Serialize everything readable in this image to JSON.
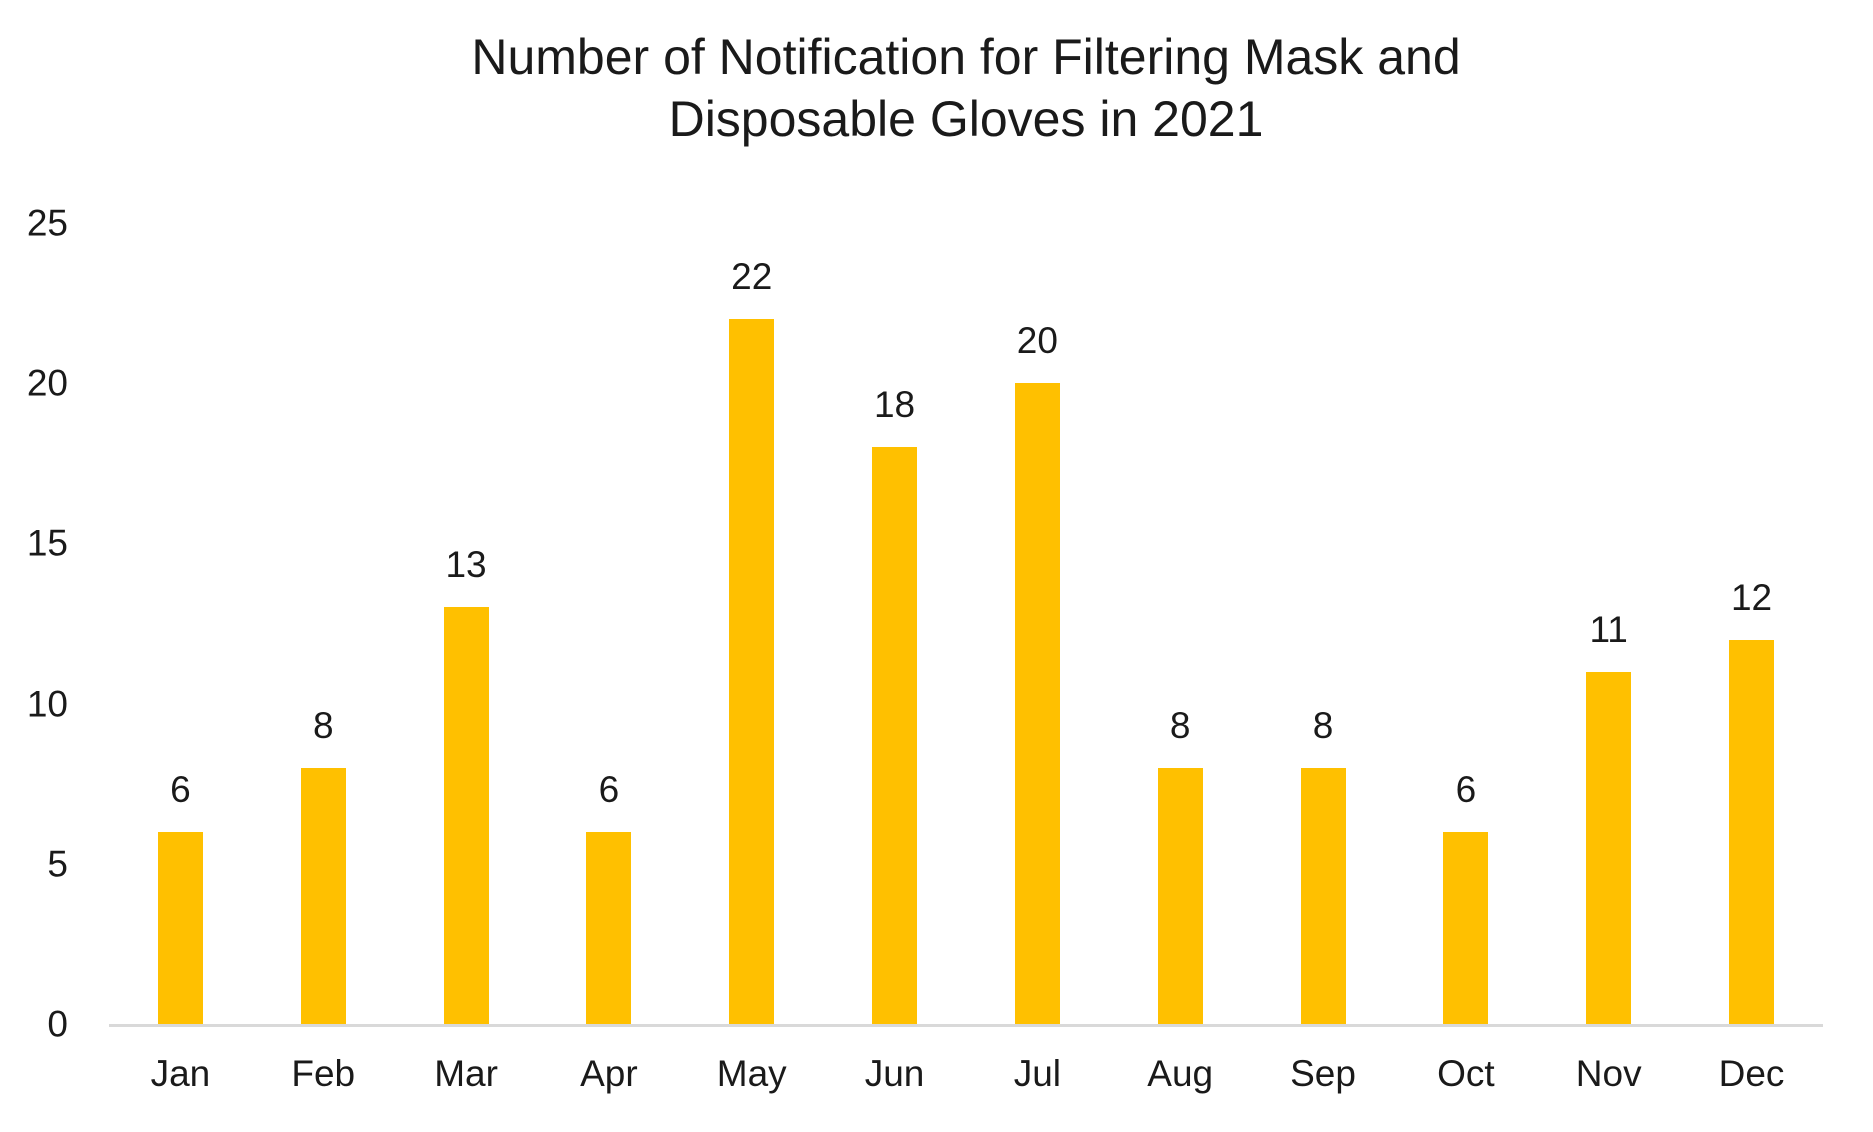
{
  "chart_data": {
    "type": "bar",
    "title": "Number of Notification for Filtering Mask and Disposable Gloves in 2021",
    "title_lines": [
      "Number of Notification for Filtering Mask and",
      "Disposable Gloves in 2021"
    ],
    "categories": [
      "Jan",
      "Feb",
      "Mar",
      "Apr",
      "May",
      "Jun",
      "Jul",
      "Aug",
      "Sep",
      "Oct",
      "Nov",
      "Dec"
    ],
    "values": [
      6,
      8,
      13,
      6,
      22,
      18,
      20,
      8,
      8,
      6,
      11,
      12
    ],
    "ylim": [
      0,
      25
    ],
    "y_ticks": [
      0,
      5,
      10,
      15,
      20,
      25
    ],
    "data_labels": true,
    "grid": false,
    "legend": false,
    "bar_color": "#FFC000",
    "axis_line_color": "#D9D9D9",
    "text_color": "#1A1A1A"
  }
}
